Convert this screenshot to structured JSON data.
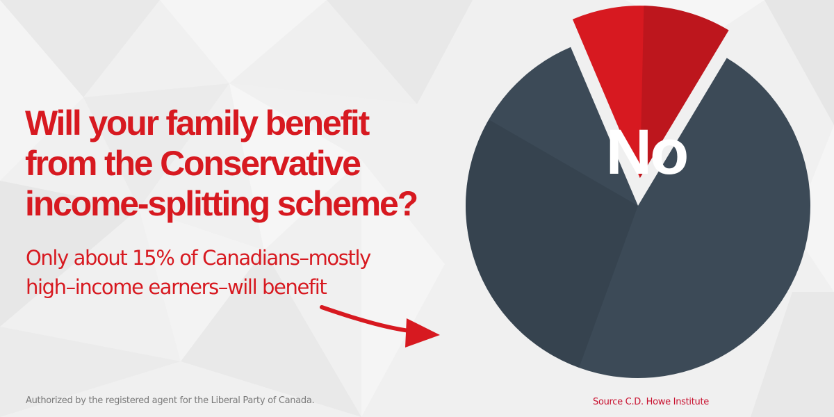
{
  "headline": {
    "line1": "Will your family benefit",
    "line2": "from the Conservative",
    "line3": "income-splitting scheme?"
  },
  "subhead": {
    "line1": "Only about 15% of Canadians–mostly",
    "line2": "high–income earners–will benefit"
  },
  "footer": {
    "authorization": "Authorized by the registered agent for the Liberal Party of Canada.",
    "source": "Source C.D. Howe Institute"
  },
  "colors": {
    "red": "#d71920",
    "dark_red": "#a8141b",
    "slate": "#3c4a57",
    "slate_dark": "#2f3b46",
    "background": "#f0f0f0"
  },
  "icons": [
    "arrow-icon"
  ],
  "chart_data": {
    "type": "pie",
    "slices": [
      {
        "label": "No",
        "value": 85,
        "color": "#3c4a57"
      },
      {
        "label": "",
        "value": 15,
        "color": "#d71920",
        "exploded": true
      }
    ],
    "title": "",
    "legend": "none"
  }
}
